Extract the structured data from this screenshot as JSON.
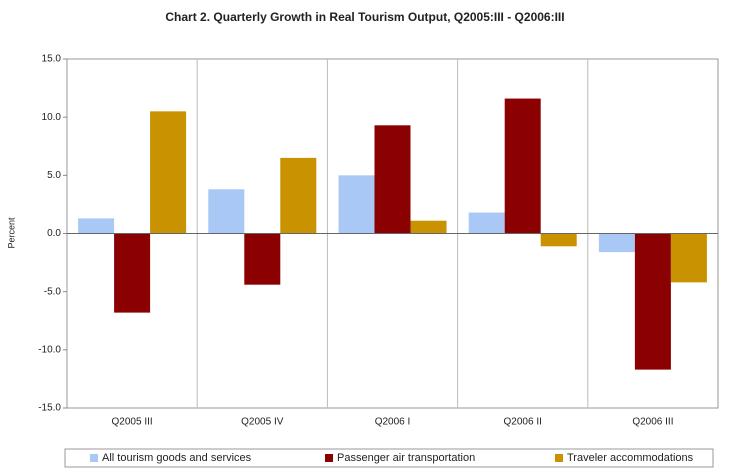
{
  "chart_data": {
    "type": "bar",
    "title": "Chart 2. Quarterly Growth in Real Tourism Output, Q2005:III - Q2006:III",
    "y_label": "Percent",
    "categories": [
      "Q2005 III",
      "Q2005 IV",
      "Q2006 I",
      "Q2006 II",
      "Q2006 III"
    ],
    "series": [
      {
        "name": "All tourism goods and services",
        "color": "#a9c8f5",
        "values": [
          1.3,
          3.8,
          5.0,
          1.8,
          -1.6
        ]
      },
      {
        "name": "Passenger air transportation",
        "color": "#8b0000",
        "values": [
          -6.8,
          -4.4,
          9.3,
          11.6,
          -11.7
        ]
      },
      {
        "name": "Traveler accommodations",
        "color": "#c89200",
        "values": [
          10.5,
          6.5,
          1.1,
          -1.1,
          -4.2
        ]
      }
    ],
    "ylim": [
      -15,
      15
    ],
    "yticks": [
      {
        "value": -15,
        "label": "-15.0"
      },
      {
        "value": -10,
        "label": "-10.0"
      },
      {
        "value": -5,
        "label": "-5.0"
      },
      {
        "value": 0,
        "label": "0.0"
      },
      {
        "value": 5,
        "label": "5.0"
      },
      {
        "value": 10,
        "label": "10.0"
      },
      {
        "value": 15,
        "label": "15.0"
      }
    ],
    "legend": "bottom"
  }
}
